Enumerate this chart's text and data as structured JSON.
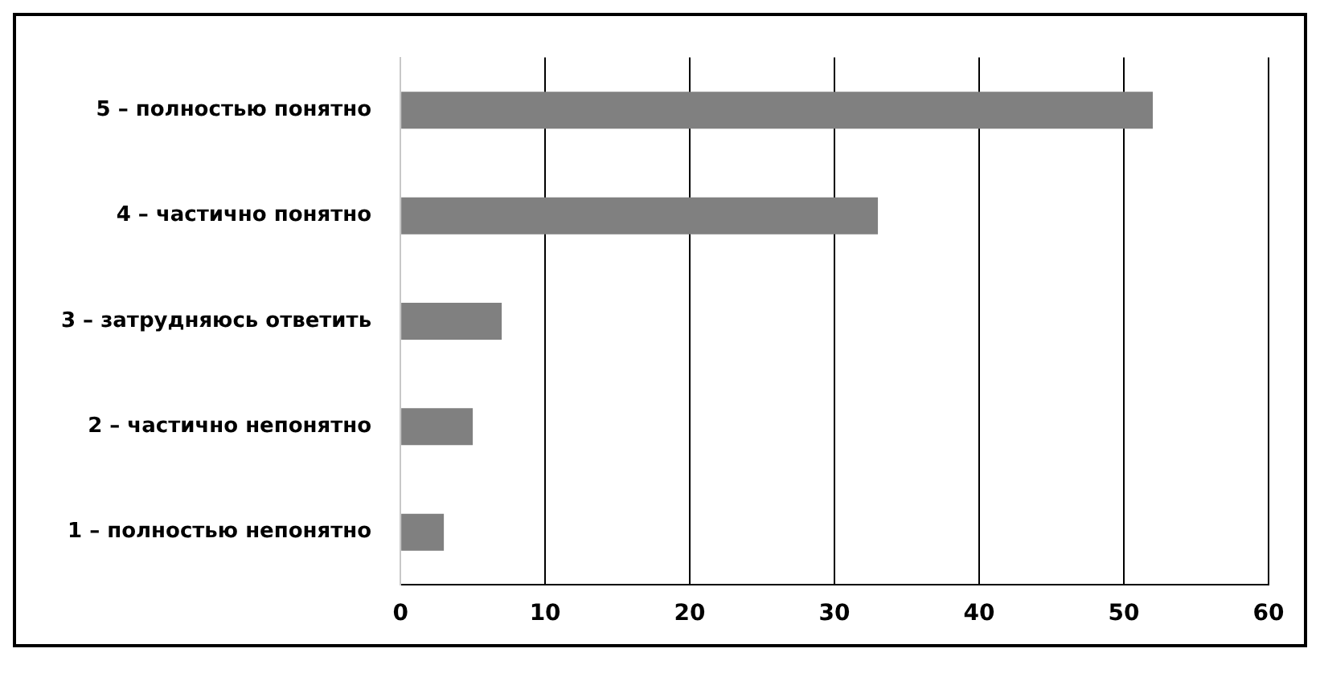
{
  "chart_data": {
    "type": "bar",
    "orientation": "horizontal",
    "categories": [
      "5 – полностью понятно",
      "4 – частично понятно",
      "3 – затрудняюсь ответить",
      "2 – частично непонятно",
      "1 – полностью непонятно"
    ],
    "values": [
      52,
      33,
      7,
      5,
      3
    ],
    "color": "#808080",
    "xlim": [
      0,
      60
    ],
    "xticks": [
      0,
      10,
      20,
      30,
      40,
      50,
      60
    ],
    "grid": "x"
  }
}
